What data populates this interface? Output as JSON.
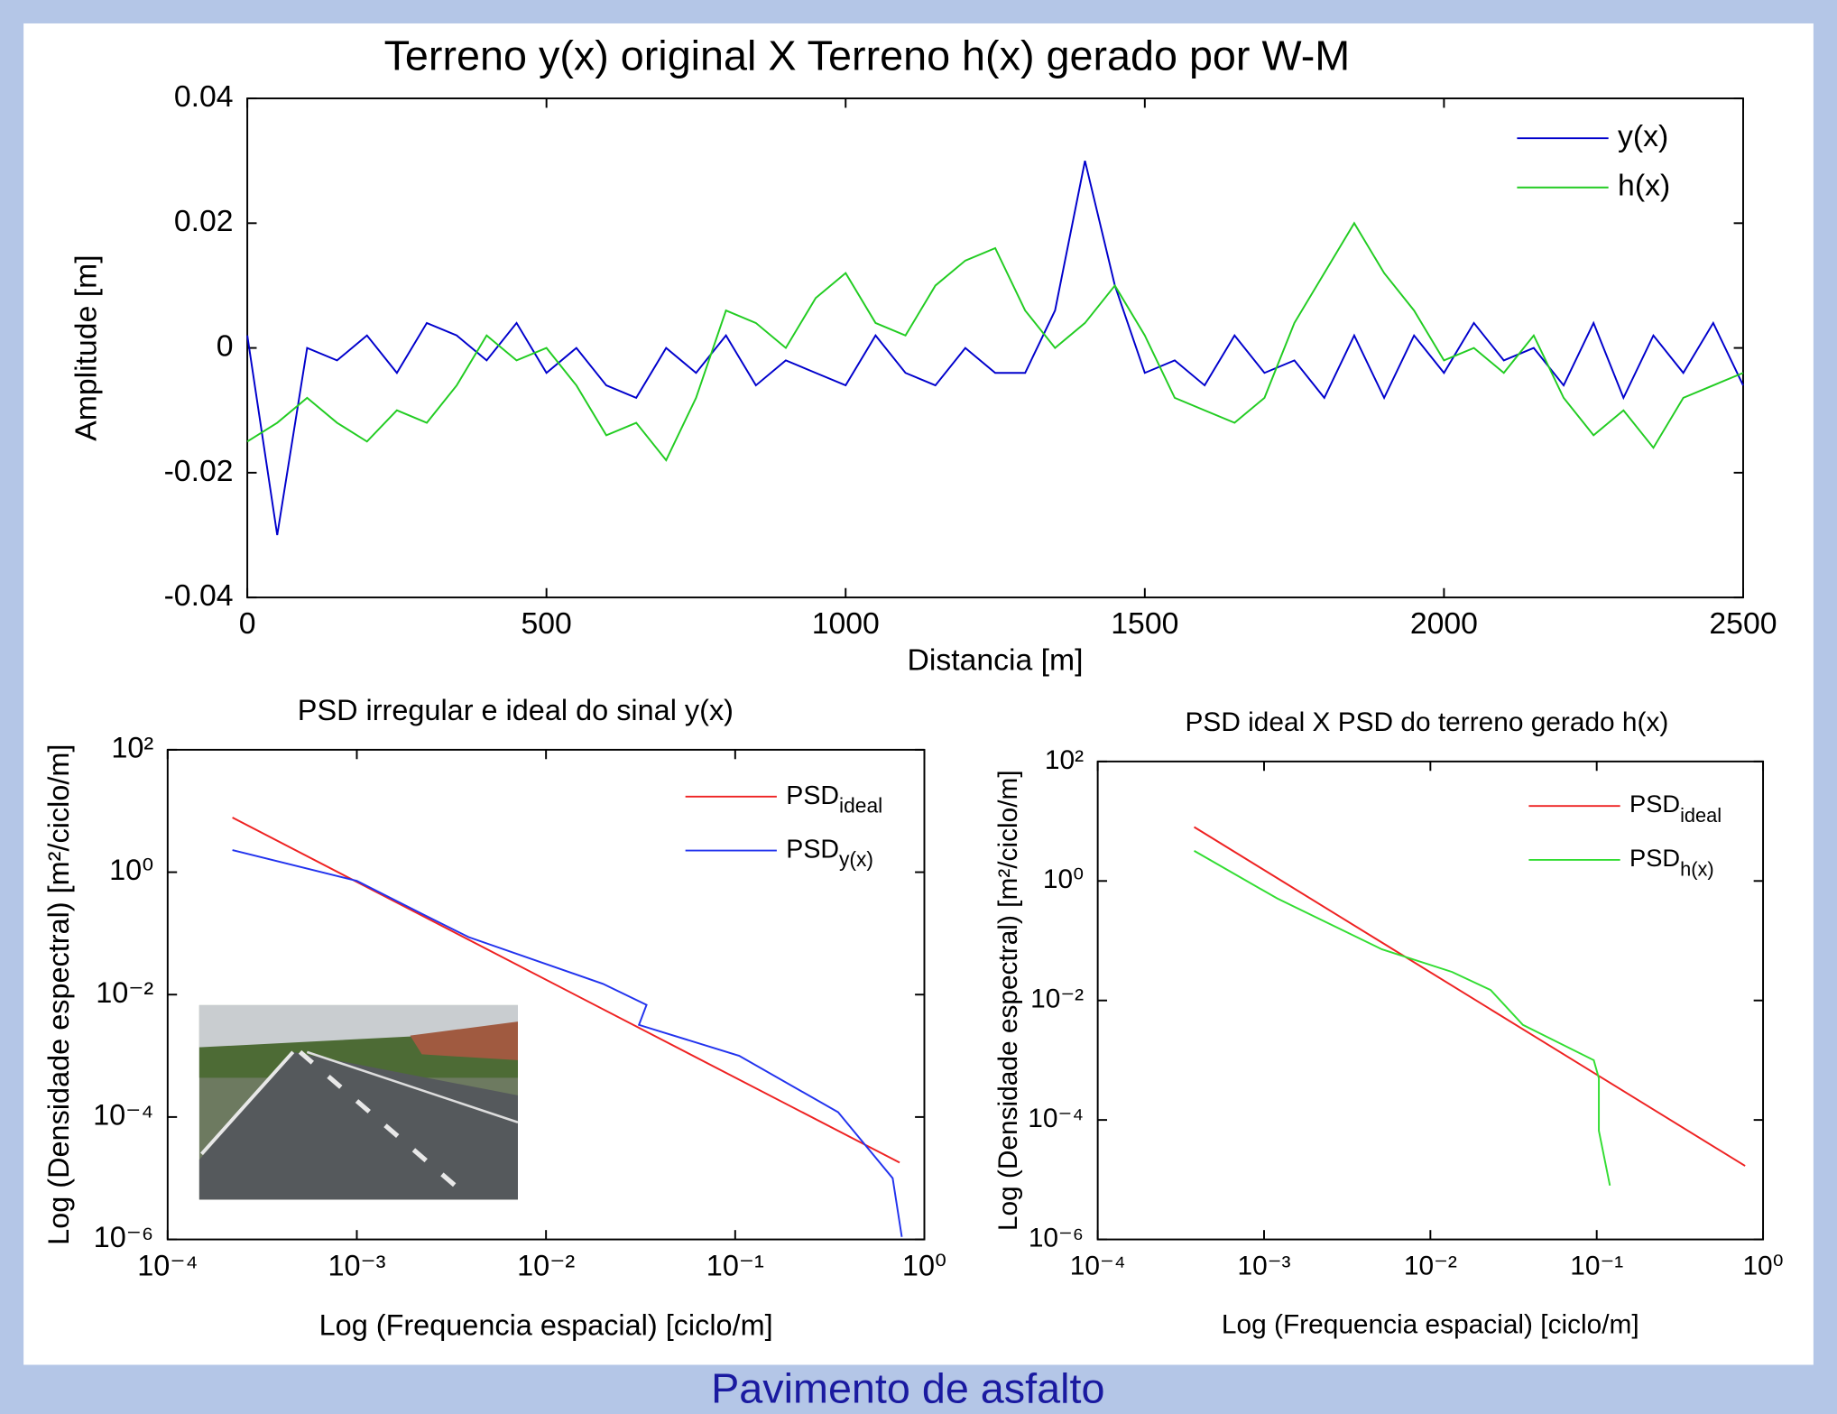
{
  "chart_data": [
    {
      "type": "line",
      "title": "Terreno y(x) original X  Terreno h(x) gerado por W-M",
      "xlabel": "Distancia [m]",
      "ylabel": "Amplitude [m]",
      "x": [
        0,
        50,
        100,
        150,
        200,
        250,
        300,
        350,
        400,
        450,
        500,
        550,
        600,
        650,
        700,
        750,
        800,
        850,
        900,
        950,
        1000,
        1050,
        1100,
        1150,
        1200,
        1250,
        1300,
        1350,
        1400,
        1450,
        1500,
        1550,
        1600,
        1650,
        1700,
        1750,
        1800,
        1850,
        1900,
        1950,
        2000,
        2050,
        2100,
        2150,
        2200,
        2250,
        2300,
        2350,
        2400,
        2450,
        2500
      ],
      "series": [
        {
          "name": "y(x)",
          "color": "#0000cc",
          "values": [
            0.002,
            -0.03,
            0.0,
            -0.002,
            0.002,
            -0.004,
            0.004,
            0.002,
            -0.002,
            0.004,
            -0.004,
            0.0,
            -0.006,
            -0.008,
            0.0,
            -0.004,
            0.002,
            -0.006,
            -0.002,
            -0.004,
            -0.006,
            0.002,
            -0.004,
            -0.006,
            0.0,
            -0.004,
            -0.004,
            0.006,
            0.03,
            0.01,
            -0.004,
            -0.002,
            -0.006,
            0.002,
            -0.004,
            -0.002,
            -0.008,
            0.002,
            -0.008,
            0.002,
            -0.004,
            0.004,
            -0.002,
            0.0,
            -0.006,
            0.004,
            -0.008,
            0.002,
            -0.004,
            0.004,
            -0.006
          ]
        },
        {
          "name": "h(x)",
          "color": "#22cc22",
          "values": [
            -0.015,
            -0.012,
            -0.008,
            -0.012,
            -0.015,
            -0.01,
            -0.012,
            -0.006,
            0.002,
            -0.002,
            0.0,
            -0.006,
            -0.014,
            -0.012,
            -0.018,
            -0.008,
            0.006,
            0.004,
            0.0,
            0.008,
            0.012,
            0.004,
            0.002,
            0.01,
            0.014,
            0.016,
            0.006,
            0.0,
            0.004,
            0.01,
            0.002,
            -0.008,
            -0.01,
            -0.012,
            -0.008,
            0.004,
            0.012,
            0.02,
            0.012,
            0.006,
            -0.002,
            0.0,
            -0.004,
            0.002,
            -0.008,
            -0.014,
            -0.01,
            -0.016,
            -0.008,
            -0.006,
            -0.004
          ]
        }
      ],
      "xlim": [
        0,
        2500
      ],
      "ylim": [
        -0.04,
        0.04
      ],
      "xticks": [
        0,
        500,
        1000,
        1500,
        2000,
        2500
      ],
      "yticks": [
        -0.04,
        -0.02,
        0,
        0.02,
        0.04
      ],
      "xlog": false,
      "ylog": false,
      "legend": "upper right"
    },
    {
      "type": "line",
      "title": "PSD irregular e ideal do sinal y(x)",
      "xlabel": "Log (Frequencia espacial) [ciclo/m]",
      "ylabel": "Log (Densidade espectral) [m²/ciclo/m]",
      "series": [
        {
          "name": "PSD",
          "subscript": "ideal",
          "color": "#ee2222",
          "x": [
            0.00022,
            0.74
          ],
          "values": [
            7.8,
            1.8e-05
          ]
        },
        {
          "name": "PSD",
          "subscript": "y(x)",
          "color": "#2233ee",
          "x": [
            0.00022,
            0.001,
            0.0022,
            0.0039,
            0.02,
            0.034,
            0.031,
            0.105,
            0.35,
            0.68,
            0.76
          ],
          "values": [
            2.3,
            0.72,
            0.21,
            0.087,
            0.015,
            0.0068,
            0.0032,
            0.001,
            0.00012,
            1e-05,
            1.1e-06
          ]
        }
      ],
      "xlim": [
        0.0001,
        1
      ],
      "ylim": [
        1e-06,
        100
      ],
      "xticks": [
        {
          "value": 0.0001,
          "label": "10⁻⁴"
        },
        {
          "value": 0.001,
          "label": "10⁻³"
        },
        {
          "value": 0.01,
          "label": "10⁻²"
        },
        {
          "value": 0.1,
          "label": "10⁻¹"
        },
        {
          "value": 1,
          "label": "10⁰"
        }
      ],
      "yticks": [
        {
          "value": 1e-06,
          "label": "10⁻⁶"
        },
        {
          "value": 0.0001,
          "label": "10⁻⁴"
        },
        {
          "value": 0.01,
          "label": "10⁻²"
        },
        {
          "value": 1,
          "label": "10⁰"
        },
        {
          "value": 100,
          "label": "10²"
        }
      ],
      "xlog": true,
      "ylog": true,
      "legend": "upper right"
    },
    {
      "type": "line",
      "title": "PSD ideal X  PSD do terreno gerado h(x)",
      "xlabel": "Log (Frequencia espacial) [ciclo/m]",
      "ylabel": "Log (Densidade espectral) [m²/ciclo/m]",
      "series": [
        {
          "name": "PSD",
          "subscript": "ideal",
          "color": "#ee2222",
          "x": [
            0.00038,
            0.78
          ],
          "values": [
            8,
            1.7e-05
          ]
        },
        {
          "name": "PSD",
          "subscript": "h(x)",
          "color": "#33dd33",
          "x": [
            0.00038,
            0.0012,
            0.0051,
            0.0135,
            0.023,
            0.036,
            0.096,
            0.103,
            0.103,
            0.12
          ],
          "values": [
            3.2,
            0.51,
            0.072,
            0.03,
            0.015,
            0.0039,
            0.001,
            0.0005,
            6.6e-05,
            8e-06
          ]
        }
      ],
      "xlim": [
        0.0001,
        1
      ],
      "ylim": [
        1e-06,
        100
      ],
      "xticks": [
        {
          "value": 0.0001,
          "label": "10⁻⁴"
        },
        {
          "value": 0.001,
          "label": "10⁻³"
        },
        {
          "value": 0.01,
          "label": "10⁻²"
        },
        {
          "value": 0.1,
          "label": "10⁻¹"
        },
        {
          "value": 1,
          "label": "10⁰"
        }
      ],
      "yticks": [
        {
          "value": 1e-06,
          "label": "10⁻⁶"
        },
        {
          "value": 0.0001,
          "label": "10⁻⁴"
        },
        {
          "value": 0.01,
          "label": "10⁻²"
        },
        {
          "value": 1,
          "label": "10⁰"
        },
        {
          "value": 100,
          "label": "10²"
        }
      ],
      "xlog": true,
      "ylog": true,
      "legend": "upper right"
    }
  ],
  "caption": "Pavimento de asfalto"
}
